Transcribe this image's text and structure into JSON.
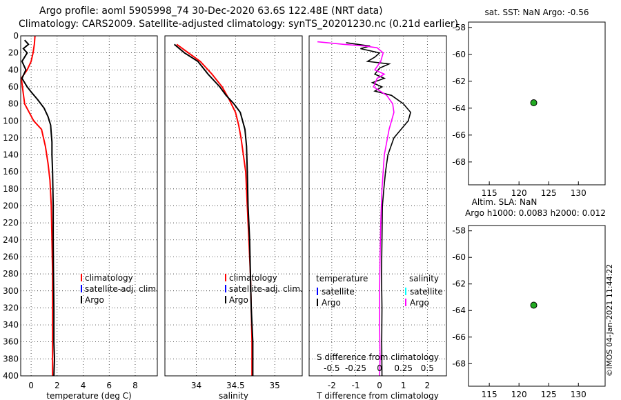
{
  "header": {
    "title_line1": "Argo profile: aoml 5905998_74 30-Dec-2020 63.6S 122.48E (NRT data)",
    "title_line2": "Climatology: CARS2009. Satellite-adjusted climatology: synTS_20201230.nc (0.21d earlier)"
  },
  "credit": "©IMOS 04-Jan-2021 11:44:22",
  "colors": {
    "climatology": "#ff0000",
    "satellite": "#0000ff",
    "argo": "#000000",
    "salinity_argo": "#ff00ff",
    "salinity_satellite": "#00ffff",
    "marker": "#22aa22"
  },
  "chart_data": [
    {
      "type": "line",
      "title": "",
      "xlabel": "temperature (deg C)",
      "ylabel": "",
      "xlim": [
        -0.8,
        9.7
      ],
      "ylim": [
        400,
        0
      ],
      "xticks": [
        0,
        2,
        4,
        6,
        8
      ],
      "xticklabels": [
        "0",
        "2",
        "4",
        "6",
        "8"
      ],
      "yticks": [
        0,
        20,
        40,
        60,
        80,
        100,
        120,
        140,
        160,
        180,
        200,
        220,
        240,
        260,
        280,
        300,
        320,
        340,
        360,
        380,
        400
      ],
      "grid": true,
      "legend": [
        "climatology",
        "satellite-adj. clim.",
        "Argo"
      ],
      "legend_colors": [
        "#ff0000",
        "#0000ff",
        "#000000"
      ],
      "legend_position": "bottom-right",
      "series": [
        {
          "name": "climatology",
          "color": "#ff0000",
          "x": [
            0.3,
            0.25,
            0.15,
            0.0,
            -0.3,
            -0.75,
            -0.5,
            0.2,
            0.8,
            1.1,
            1.3,
            1.45,
            1.55,
            1.6,
            1.65,
            1.65,
            1.65,
            1.65,
            1.65
          ],
          "y": [
            0,
            10,
            20,
            30,
            40,
            50,
            80,
            100,
            110,
            130,
            150,
            170,
            200,
            240,
            280,
            300,
            340,
            380,
            400
          ]
        },
        {
          "name": "Argo",
          "color": "#000000",
          "x": [
            -0.5,
            -0.2,
            -0.6,
            -0.3,
            -0.7,
            -0.4,
            -0.7,
            -0.3,
            0.0,
            0.5,
            1.0,
            1.3,
            1.5,
            1.55,
            1.6,
            1.6,
            1.65,
            1.7,
            1.7,
            1.72,
            1.75,
            1.75,
            1.8,
            1.75
          ],
          "y": [
            5,
            10,
            15,
            20,
            30,
            40,
            50,
            60,
            66,
            75,
            85,
            95,
            105,
            115,
            125,
            140,
            160,
            200,
            240,
            280,
            320,
            360,
            380,
            400
          ]
        }
      ]
    },
    {
      "type": "line",
      "title": "",
      "xlabel": "salinity",
      "ylabel": "",
      "xlim": [
        33.6,
        35.35
      ],
      "ylim": [
        400,
        0
      ],
      "xticks": [
        34,
        34.5,
        35
      ],
      "xticklabels": [
        "34",
        "34.5",
        "35"
      ],
      "yticks": [
        0,
        20,
        40,
        60,
        80,
        100,
        120,
        140,
        160,
        180,
        200,
        220,
        240,
        260,
        280,
        300,
        320,
        340,
        360,
        380,
        400
      ],
      "grid": true,
      "legend": [
        "climatology",
        "satellite-adj. clim.",
        "Argo"
      ],
      "legend_colors": [
        "#ff0000",
        "#0000ff",
        "#000000"
      ],
      "legend_position": "bottom-right",
      "series": [
        {
          "name": "climatology",
          "color": "#ff0000",
          "x": [
            33.75,
            33.9,
            34.05,
            34.2,
            34.33,
            34.42,
            34.5,
            34.54,
            34.57,
            34.6,
            34.63,
            34.65,
            34.67,
            34.69,
            34.7,
            34.71,
            34.71
          ],
          "y": [
            10,
            20,
            30,
            45,
            60,
            75,
            90,
            105,
            120,
            140,
            160,
            200,
            240,
            280,
            320,
            360,
            400
          ]
        },
        {
          "name": "Argo",
          "color": "#000000",
          "x": [
            33.72,
            33.85,
            34.02,
            34.15,
            34.3,
            34.38,
            34.48,
            34.56,
            34.62,
            34.64,
            34.65,
            34.66,
            34.68,
            34.69,
            34.7,
            34.72,
            34.72
          ],
          "y": [
            10,
            20,
            30,
            45,
            60,
            70,
            80,
            90,
            110,
            130,
            160,
            200,
            240,
            280,
            320,
            360,
            400
          ]
        }
      ]
    },
    {
      "type": "line",
      "title": "",
      "xlabel": "T difference from climatology",
      "xlabel_top": "S difference from climatology",
      "ylabel": "",
      "xlim": [
        -2.95,
        2.8
      ],
      "ylim": [
        400,
        0
      ],
      "xticks": [
        -2,
        -1,
        0,
        1,
        2
      ],
      "xticklabels": [
        "-2",
        "-1",
        "0",
        "1",
        "2"
      ],
      "sticks": [
        -2,
        -1,
        0,
        1,
        2
      ],
      "sticklabels": [
        "-0.5",
        "-0.25",
        "0",
        "0.25",
        "0.5"
      ],
      "yticks": [
        0,
        20,
        40,
        60,
        80,
        100,
        120,
        140,
        160,
        180,
        200,
        220,
        240,
        260,
        280,
        300,
        320,
        340,
        360,
        380,
        400
      ],
      "grid": true,
      "legend_headers": [
        "temperature",
        "salinity"
      ],
      "legend_left": [
        "satellite",
        "Argo"
      ],
      "legend_left_colors": [
        "#0000ff",
        "#000000"
      ],
      "legend_right": [
        "satellite",
        "Argo"
      ],
      "legend_right_colors": [
        "#00ffff",
        "#ff00ff"
      ],
      "series": [
        {
          "name": "temperature Argo",
          "color": "#000000",
          "x": [
            -1.4,
            -0.4,
            -0.8,
            0.0,
            -0.2,
            -0.5,
            0.4,
            0.0,
            -0.2,
            0.2,
            -0.3,
            0.1,
            -0.2,
            0.5,
            1.0,
            1.3,
            1.2,
            0.9,
            0.6,
            0.35,
            0.25,
            0.18,
            0.12,
            0.1,
            0.08,
            0.1,
            0.09,
            0.1
          ],
          "y": [
            8,
            12,
            15,
            20,
            25,
            30,
            33,
            38,
            45,
            50,
            55,
            60,
            65,
            70,
            80,
            90,
            100,
            110,
            120,
            140,
            160,
            180,
            200,
            240,
            280,
            320,
            360,
            400
          ]
        },
        {
          "name": "salinity Argo",
          "color": "#ff00ff",
          "x": [
            -2.6,
            -1.5,
            -0.6,
            -0.1,
            0.15,
            0.05,
            -0.2,
            0.2,
            -0.1,
            -0.25,
            0.3,
            0.55,
            0.6,
            0.4,
            0.2,
            0.1,
            0.05,
            0.02,
            0.0,
            0.0,
            0.02,
            0.0
          ],
          "y": [
            7,
            10,
            12,
            14,
            20,
            30,
            40,
            45,
            50,
            60,
            70,
            80,
            90,
            110,
            140,
            180,
            220,
            260,
            300,
            340,
            380,
            400
          ]
        }
      ]
    },
    {
      "type": "scatter",
      "title": "sat. SST: NaN Argo: -0.56",
      "xlabel": "",
      "ylabel": "",
      "xlim": [
        111.5,
        134.5
      ],
      "ylim": [
        -69.7,
        -57.6
      ],
      "xticks": [
        115,
        120,
        125,
        130
      ],
      "xticklabels": [
        "115",
        "120",
        "125",
        "130"
      ],
      "yticks": [
        -58,
        -60,
        -62,
        -64,
        -66,
        -68
      ],
      "yticklabels": [
        "-58",
        "-60",
        "-62",
        "-64",
        "-66",
        "-68"
      ],
      "points": [
        {
          "x": 122.48,
          "y": -63.6
        }
      ]
    },
    {
      "type": "scatter",
      "title": "Altim. SLA: NaN",
      "subtitle": "Argo h1000: 0.0083 h2000: 0.012",
      "xlabel": "",
      "ylabel": "",
      "xlim": [
        111.5,
        134.5
      ],
      "ylim": [
        -69.7,
        -57.6
      ],
      "xticks": [
        115,
        120,
        125,
        130
      ],
      "xticklabels": [
        "115",
        "120",
        "125",
        "130"
      ],
      "yticks": [
        -58,
        -60,
        -62,
        -64,
        -66,
        -68
      ],
      "yticklabels": [
        "-58",
        "-60",
        "-62",
        "-64",
        "-66",
        "-68"
      ],
      "points": [
        {
          "x": 122.48,
          "y": -63.6
        }
      ]
    }
  ]
}
